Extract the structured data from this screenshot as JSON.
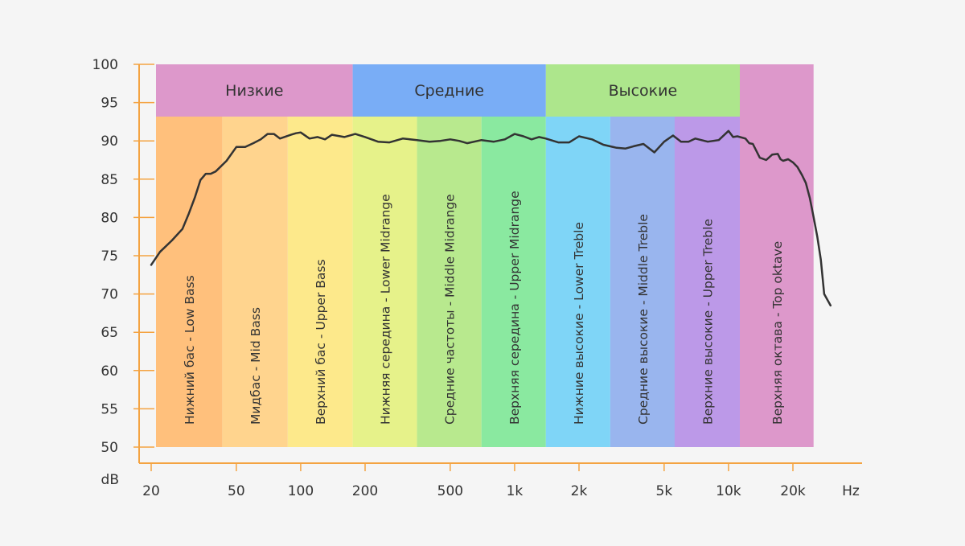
{
  "chart_data": {
    "type": "line",
    "x_scale": "log",
    "ylim": [
      50,
      100
    ],
    "y_ticks": [
      {
        "value": 100,
        "label": "100"
      },
      {
        "value": 95,
        "label": "95"
      },
      {
        "value": 90,
        "label": "90"
      },
      {
        "value": 85,
        "label": "85"
      },
      {
        "value": 80,
        "label": "80"
      },
      {
        "value": 75,
        "label": "75"
      },
      {
        "value": 70,
        "label": "70"
      },
      {
        "value": 65,
        "label": "65"
      },
      {
        "value": 60,
        "label": "60"
      },
      {
        "value": 55,
        "label": "55"
      },
      {
        "value": 50,
        "label": "50"
      }
    ],
    "x_ticks": [
      {
        "value": 20,
        "label": "20"
      },
      {
        "value": 50,
        "label": "50"
      },
      {
        "value": 100,
        "label": "100"
      },
      {
        "value": 200,
        "label": "200"
      },
      {
        "value": 500,
        "label": "500"
      },
      {
        "value": 1000,
        "label": "1k"
      },
      {
        "value": 2000,
        "label": "2k"
      },
      {
        "value": 5000,
        "label": "5k"
      },
      {
        "value": 10000,
        "label": "10k"
      },
      {
        "value": 20000,
        "label": "20k"
      }
    ],
    "ylabel": "dB",
    "xlabel": "Hz",
    "colors": {
      "axis": "#f4a341",
      "line": "#333333",
      "text": "#333333"
    },
    "groups": [
      {
        "label": "Низкие",
        "from": 20,
        "to": 175,
        "color": "#dd98cb"
      },
      {
        "label": "Средние",
        "from": 175,
        "to": 1400,
        "color": "#79adf6"
      },
      {
        "label": "Высокие",
        "from": 1400,
        "to": 11300,
        "color": "#ade68c"
      },
      {
        "label": "",
        "from": 11300,
        "to": 25000,
        "color": "#dd98cb"
      }
    ],
    "bands": [
      {
        "label": "Нижний бас - Low Bass",
        "from": 20,
        "to": 43,
        "color": "#ffc07c"
      },
      {
        "label": "Мидбас - Mid Bass",
        "from": 43,
        "to": 87,
        "color": "#ffd48e"
      },
      {
        "label": "Верхний бас - Upper Bass",
        "from": 87,
        "to": 175,
        "color": "#fde98b"
      },
      {
        "label": "Нижняя середина - Lower Midrange",
        "from": 175,
        "to": 350,
        "color": "#e6f28a"
      },
      {
        "label": "Средние частоты - Middle Midrange",
        "from": 350,
        "to": 700,
        "color": "#b8e98e"
      },
      {
        "label": "Верхняя середина - Upper Midrange",
        "from": 700,
        "to": 1400,
        "color": "#8ae9a0"
      },
      {
        "label": "Нижние высокие - Lower Treble",
        "from": 1400,
        "to": 2800,
        "color": "#7fd5f7"
      },
      {
        "label": "Средние высокие - Middle Treble",
        "from": 2800,
        "to": 5600,
        "color": "#99b5ee"
      },
      {
        "label": "Верхние высокие - Upper Treble",
        "from": 5600,
        "to": 11300,
        "color": "#bc99e8"
      },
      {
        "label": "Верхняя октава - Top oktave",
        "from": 11300,
        "to": 25000,
        "color": "#dd98cb"
      }
    ],
    "series": [
      {
        "x": [
          20,
          22,
          25,
          28,
          30,
          32,
          34,
          36,
          38,
          40,
          45,
          50,
          55,
          60,
          65,
          70,
          75,
          80,
          90,
          95,
          100,
          110,
          120,
          130,
          140,
          160,
          180,
          200,
          230,
          260,
          300,
          350,
          400,
          450,
          500,
          550,
          600,
          700,
          800,
          900,
          1000,
          1100,
          1200,
          1300,
          1400,
          1600,
          1800,
          2000,
          2300,
          2600,
          3000,
          3300,
          3600,
          4000,
          4500,
          5000,
          5500,
          6000,
          6500,
          7000,
          8000,
          9000,
          10000,
          10500,
          11000,
          12000,
          12500,
          13000,
          14000,
          15000,
          16000,
          17000,
          17500,
          18000,
          19000,
          20000,
          21000,
          22000,
          23000,
          24000,
          25000,
          26000,
          27000,
          28000,
          30000
        ],
        "y": [
          73.8,
          75.5,
          77,
          78.5,
          80.5,
          82.6,
          84.9,
          85.7,
          85.7,
          86,
          87.4,
          89.2,
          89.2,
          89.7,
          90.2,
          90.9,
          90.9,
          90.3,
          90.8,
          91,
          91.1,
          90.3,
          90.5,
          90.2,
          90.8,
          90.5,
          90.9,
          90.5,
          89.9,
          89.8,
          90.3,
          90.1,
          89.9,
          90.0,
          90.2,
          90.0,
          89.7,
          90.1,
          89.9,
          90.2,
          90.9,
          90.6,
          90.2,
          90.5,
          90.3,
          89.8,
          89.8,
          90.6,
          90.2,
          89.5,
          89.1,
          89.0,
          89.3,
          89.6,
          88.5,
          89.9,
          90.7,
          89.9,
          89.9,
          90.3,
          89.9,
          90.1,
          91.3,
          90.5,
          90.6,
          90.3,
          89.7,
          89.6,
          87.8,
          87.5,
          88.2,
          88.3,
          87.6,
          87.4,
          87.6,
          87.2,
          86.6,
          85.6,
          84.5,
          82.5,
          80,
          77.5,
          74.5,
          70,
          68.5
        ]
      }
    ]
  }
}
